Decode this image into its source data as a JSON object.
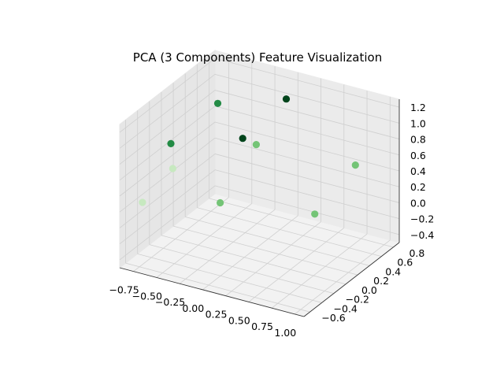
{
  "chart_data": {
    "type": "scatter",
    "title": "PCA (3 Components) Feature Visualization",
    "xlabel": "",
    "ylabel": "",
    "zlabel": "",
    "xlim": [
      -0.9,
      1.1
    ],
    "ylim": [
      -0.7,
      0.9
    ],
    "zlim": [
      -0.5,
      1.3
    ],
    "x_ticks": [
      -0.75,
      -0.5,
      -0.25,
      0.0,
      0.25,
      0.5,
      0.75,
      1.0
    ],
    "x_tick_labels": [
      "−0.75",
      "−0.50",
      "−0.25",
      "0.00",
      "0.25",
      "0.50",
      "0.75",
      "1.00"
    ],
    "y_ticks": [
      -0.6,
      -0.4,
      -0.2,
      0.0,
      0.2,
      0.4,
      0.6,
      0.8
    ],
    "y_tick_labels": [
      "−0.6",
      "−0.4",
      "−0.2",
      "0.0",
      "0.2",
      "0.4",
      "0.6",
      "0.8"
    ],
    "z_ticks": [
      -0.4,
      -0.2,
      0.0,
      0.2,
      0.4,
      0.6,
      0.8,
      1.0,
      1.2
    ],
    "z_tick_labels": [
      "−0.4",
      "−0.2",
      "0.0",
      "0.2",
      "0.4",
      "0.6",
      "0.8",
      "1.0",
      "1.2"
    ],
    "grid": true,
    "points": [
      {
        "x": -0.75,
        "y": -0.55,
        "z": 0.28,
        "color": "#c7e9c0"
      },
      {
        "x": -0.55,
        "y": -0.35,
        "z": 0.65,
        "color": "#c7e9c0"
      },
      {
        "x": -0.7,
        "y": -0.15,
        "z": 0.8,
        "color": "#238b45"
      },
      {
        "x": -0.45,
        "y": 0.25,
        "z": 1.15,
        "color": "#238b45"
      },
      {
        "x": -0.1,
        "y": -0.25,
        "z": 0.3,
        "color": "#74c476"
      },
      {
        "x": -0.05,
        "y": 0.05,
        "z": 0.95,
        "color": "#00441b"
      },
      {
        "x": 0.0,
        "y": 0.2,
        "z": 0.8,
        "color": "#74c476"
      },
      {
        "x": 0.1,
        "y": 0.55,
        "z": 1.2,
        "color": "#00441b"
      },
      {
        "x": 0.7,
        "y": 0.1,
        "z": 0.2,
        "color": "#74c476"
      },
      {
        "x": 0.85,
        "y": 0.55,
        "z": 0.6,
        "color": "#74c476"
      }
    ]
  }
}
